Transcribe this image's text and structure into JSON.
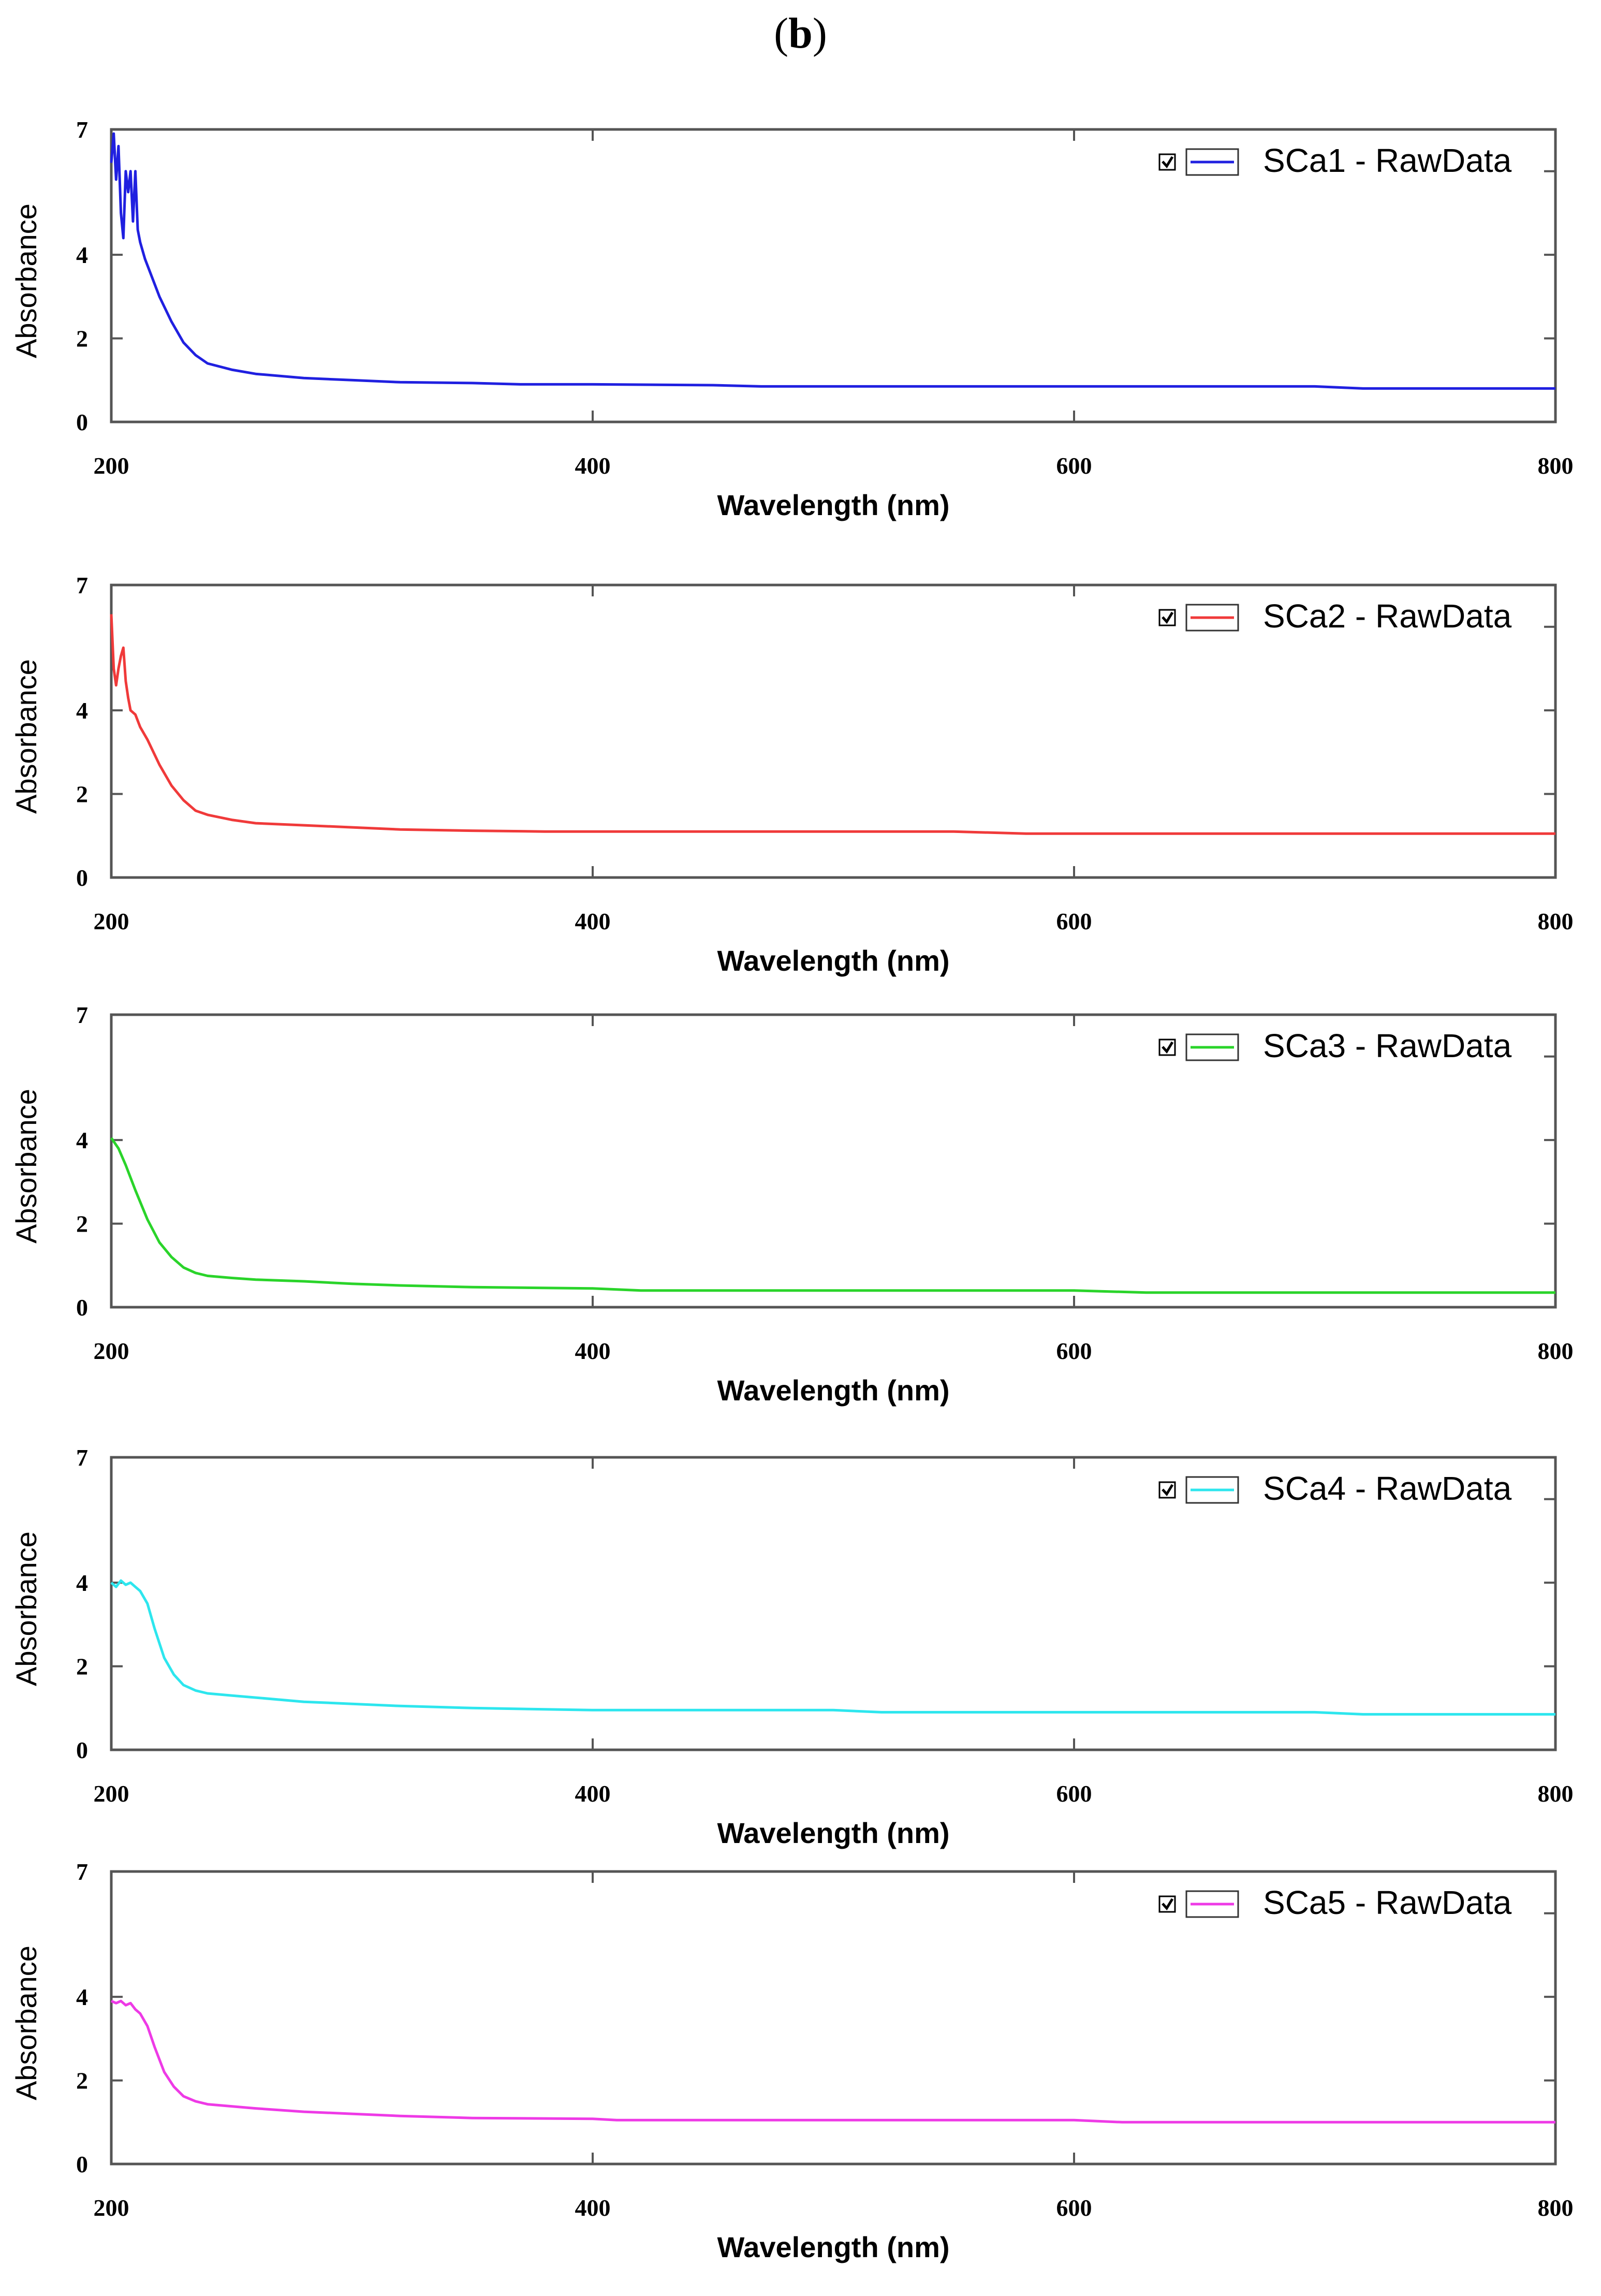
{
  "figure_label": {
    "open": "(",
    "letter": "b",
    "close": ")"
  },
  "chart_data": [
    {
      "type": "line",
      "title": "",
      "xlabel": "Wavelength (nm)",
      "ylabel": "Absorbance",
      "xlim": [
        200,
        800
      ],
      "ylim": [
        0,
        7
      ],
      "xticks": [
        "200",
        "400",
        "600",
        "800"
      ],
      "yticks": [
        "0",
        "2",
        "4",
        "7"
      ],
      "legend": {
        "label": "SCa1 - RawData",
        "checked": true,
        "placement": "top-right"
      },
      "color": "#2020e0",
      "series": [
        {
          "name": "SCa1 - RawData",
          "x": [
            200,
            201,
            202,
            203,
            204,
            205,
            206,
            207,
            208,
            209,
            210,
            211,
            212,
            214,
            216,
            220,
            225,
            230,
            235,
            240,
            250,
            260,
            280,
            300,
            320,
            350,
            370,
            400,
            450,
            470,
            500,
            550,
            600,
            650,
            700,
            720,
            750,
            800
          ],
          "y": [
            6.2,
            6.9,
            5.8,
            6.6,
            5.0,
            4.4,
            6.0,
            5.5,
            6.0,
            4.8,
            6.0,
            4.6,
            4.3,
            3.9,
            3.6,
            3.0,
            2.4,
            1.9,
            1.6,
            1.4,
            1.25,
            1.15,
            1.05,
            1.0,
            0.95,
            0.93,
            0.9,
            0.9,
            0.88,
            0.85,
            0.85,
            0.85,
            0.85,
            0.85,
            0.85,
            0.8,
            0.8,
            0.8
          ]
        }
      ]
    },
    {
      "type": "line",
      "title": "",
      "xlabel": "Wavelength (nm)",
      "ylabel": "Absorbance",
      "xlim": [
        200,
        800
      ],
      "ylim": [
        0,
        7
      ],
      "xticks": [
        "200",
        "400",
        "600",
        "800"
      ],
      "yticks": [
        "0",
        "2",
        "4",
        "7"
      ],
      "legend": {
        "label": "SCa2 - RawData",
        "checked": true,
        "placement": "top-right"
      },
      "color": "#f03a3a",
      "series": [
        {
          "name": "SCa2 - RawData",
          "x": [
            200,
            201,
            202,
            203,
            204,
            205,
            206,
            207,
            208,
            210,
            212,
            215,
            220,
            225,
            230,
            235,
            240,
            250,
            260,
            280,
            300,
            320,
            350,
            380,
            400,
            450,
            500,
            550,
            580,
            600,
            650,
            700,
            750,
            800
          ],
          "y": [
            6.3,
            5.0,
            4.6,
            5.0,
            5.3,
            5.5,
            4.7,
            4.3,
            4.0,
            3.9,
            3.6,
            3.3,
            2.7,
            2.2,
            1.85,
            1.6,
            1.5,
            1.38,
            1.3,
            1.25,
            1.2,
            1.15,
            1.12,
            1.1,
            1.1,
            1.1,
            1.1,
            1.1,
            1.05,
            1.05,
            1.05,
            1.05,
            1.05,
            1.05
          ]
        }
      ]
    },
    {
      "type": "line",
      "title": "",
      "xlabel": "Wavelength (nm)",
      "ylabel": "Absorbance",
      "xlim": [
        200,
        800
      ],
      "ylim": [
        0,
        7
      ],
      "xticks": [
        "200",
        "400",
        "600",
        "800"
      ],
      "yticks": [
        "0",
        "2",
        "4",
        "7"
      ],
      "legend": {
        "label": "SCa3 - RawData",
        "checked": true,
        "placement": "top-right"
      },
      "color": "#2ad42a",
      "series": [
        {
          "name": "SCa3 - RawData",
          "x": [
            200,
            203,
            206,
            210,
            215,
            220,
            225,
            230,
            235,
            240,
            250,
            260,
            280,
            300,
            320,
            350,
            400,
            420,
            500,
            600,
            630,
            700,
            800
          ],
          "y": [
            4.05,
            3.8,
            3.4,
            2.8,
            2.1,
            1.55,
            1.2,
            0.95,
            0.82,
            0.75,
            0.7,
            0.66,
            0.62,
            0.56,
            0.52,
            0.48,
            0.45,
            0.4,
            0.4,
            0.4,
            0.35,
            0.35,
            0.35
          ]
        }
      ]
    },
    {
      "type": "line",
      "title": "",
      "xlabel": "Wavelength (nm)",
      "ylabel": "Absorbance",
      "xlim": [
        200,
        800
      ],
      "ylim": [
        0,
        7
      ],
      "xticks": [
        "200",
        "400",
        "600",
        "800"
      ],
      "yticks": [
        "0",
        "2",
        "4",
        "7"
      ],
      "legend": {
        "label": "SCa4 - RawData",
        "checked": true,
        "placement": "top-right"
      },
      "color": "#2de6ee",
      "series": [
        {
          "name": "SCa4 - RawData",
          "x": [
            200,
            202,
            204,
            206,
            208,
            210,
            212,
            215,
            218,
            222,
            226,
            230,
            235,
            240,
            250,
            260,
            280,
            300,
            320,
            350,
            400,
            450,
            500,
            520,
            600,
            700,
            720,
            800
          ],
          "y": [
            4.0,
            3.9,
            4.05,
            3.95,
            4.0,
            3.9,
            3.8,
            3.5,
            2.9,
            2.2,
            1.8,
            1.55,
            1.42,
            1.35,
            1.3,
            1.25,
            1.15,
            1.1,
            1.05,
            1.0,
            0.95,
            0.95,
            0.95,
            0.9,
            0.9,
            0.9,
            0.85,
            0.85
          ]
        }
      ]
    },
    {
      "type": "line",
      "title": "",
      "xlabel": "Wavelength (nm)",
      "ylabel": "Absorbance",
      "xlim": [
        200,
        800
      ],
      "ylim": [
        0,
        7
      ],
      "xticks": [
        "200",
        "400",
        "600",
        "800"
      ],
      "yticks": [
        "0",
        "2",
        "4",
        "7"
      ],
      "legend": {
        "label": "SCa5 - RawData",
        "checked": true,
        "placement": "top-right"
      },
      "color": "#ee3ae6",
      "series": [
        {
          "name": "SCa5 - RawData",
          "x": [
            200,
            202,
            204,
            206,
            208,
            210,
            212,
            215,
            218,
            222,
            226,
            230,
            235,
            240,
            250,
            260,
            280,
            300,
            320,
            350,
            400,
            410,
            500,
            600,
            620,
            700,
            800
          ],
          "y": [
            3.9,
            3.85,
            3.9,
            3.8,
            3.85,
            3.7,
            3.6,
            3.3,
            2.8,
            2.2,
            1.85,
            1.62,
            1.5,
            1.43,
            1.38,
            1.33,
            1.25,
            1.2,
            1.15,
            1.1,
            1.08,
            1.05,
            1.05,
            1.05,
            1.0,
            1.0,
            1.0
          ]
        }
      ]
    }
  ]
}
